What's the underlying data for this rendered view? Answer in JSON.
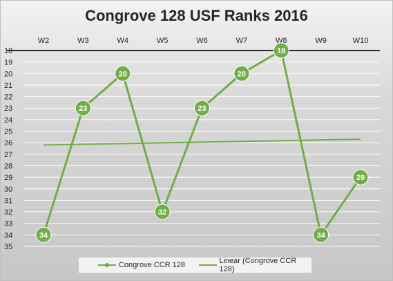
{
  "chart_data": {
    "type": "line",
    "title": "Congrove 128 USF Ranks 2016",
    "categories": [
      "W2",
      "W3",
      "W4",
      "W5",
      "W6",
      "W7",
      "W8",
      "W9",
      "W10"
    ],
    "y_axis": {
      "reversed": true,
      "min": 18,
      "max": 35,
      "step": 1,
      "position": "top"
    },
    "series": [
      {
        "name": "Congrove CCR 128",
        "values": [
          34,
          23,
          20,
          32,
          23,
          20,
          18,
          34,
          29
        ],
        "color": "#70ad47"
      }
    ],
    "trendline": {
      "name": "Linear (Congrove CCR 128)",
      "type": "linear",
      "start": 26.2,
      "end": 25.7,
      "color": "#70ad47"
    },
    "grid": true,
    "legend": "bottom"
  }
}
